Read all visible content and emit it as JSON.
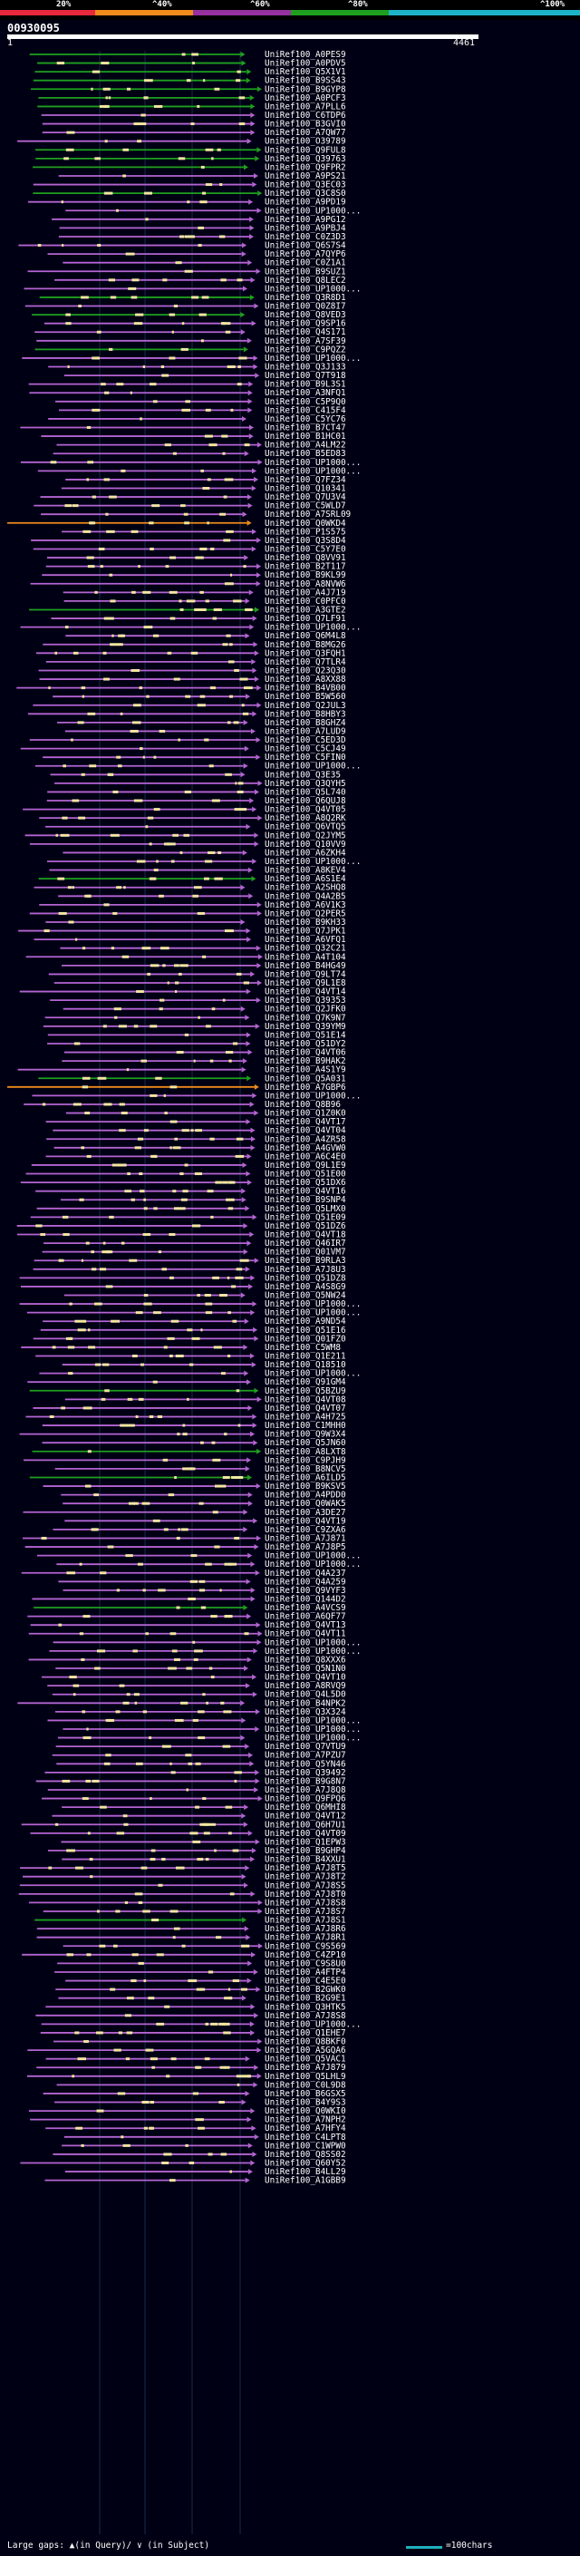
{
  "scale": {
    "labels": [
      "20%",
      "^40%",
      "^60%",
      "^80%",
      "^100%"
    ],
    "colors": [
      "#e8283c",
      "#f08c1c",
      "#9632a0",
      "#1ea01e",
      "#1eb4c8"
    ]
  },
  "query": {
    "id": "00930095",
    "start": "1",
    "end": "4461"
  },
  "legend": {
    "gap_text": "Large gaps: ▲(in Query)/ ∨ (in Subject)",
    "scale_text": "=100chars"
  },
  "colors": {
    "identity_green": "#1ea01e",
    "identity_purple": "#b464d2",
    "identity_orange": "#f08c1c",
    "gap_marks": "#f0e6a0"
  },
  "hits": [
    {
      "label": "UniRef100_A0PES9",
      "color": "green"
    },
    {
      "label": "UniRef100_A0PDV5",
      "color": "green"
    },
    {
      "label": "UniRef100_Q5X1V1",
      "color": "green"
    },
    {
      "label": "UniRef100_B9SS43",
      "color": "green"
    },
    {
      "label": "UniRef100_B9GYP8",
      "color": "green"
    },
    {
      "label": "UniRef100_A0PCF3",
      "color": "green"
    },
    {
      "label": "UniRef100_A7PLL6",
      "color": "green"
    },
    {
      "label": "UniRef100_C6TDP6",
      "color": "purple"
    },
    {
      "label": "UniRef100_B3GVI0",
      "color": "purple"
    },
    {
      "label": "UniRef100_A7QW77",
      "color": "purple"
    },
    {
      "label": "UniRef100_O39789",
      "color": "purple"
    },
    {
      "label": "UniRef100_Q9FUL8",
      "color": "green"
    },
    {
      "label": "UniRef100_Q39763",
      "color": "green"
    },
    {
      "label": "UniRef100_Q9FPR2",
      "color": "green"
    },
    {
      "label": "UniRef100_A9PS21",
      "color": "purple"
    },
    {
      "label": "UniRef100_Q3EC03",
      "color": "purple"
    },
    {
      "label": "UniRef100_Q3C8S0",
      "color": "green"
    },
    {
      "label": "UniRef100_A9PD19",
      "color": "purple"
    },
    {
      "label": "UniRef100_UP1000...",
      "color": "purple"
    },
    {
      "label": "UniRef100_A9PG12",
      "color": "purple"
    },
    {
      "label": "UniRef100_A9PBJ4",
      "color": "purple"
    },
    {
      "label": "UniRef100_C0Z3D3",
      "color": "purple"
    },
    {
      "label": "UniRef100_Q6S7S4",
      "color": "purple"
    },
    {
      "label": "UniRef100_A7QYP6",
      "color": "purple"
    },
    {
      "label": "UniRef100_C0Z1A1",
      "color": "purple"
    },
    {
      "label": "UniRef100_B9SUZ1",
      "color": "purple"
    },
    {
      "label": "UniRef100_Q8LEC2",
      "color": "purple"
    },
    {
      "label": "UniRef100_UP1000...",
      "color": "purple"
    },
    {
      "label": "UniRef100_Q3R8D1",
      "color": "green"
    },
    {
      "label": "UniRef100_Q0Z8I7",
      "color": "purple"
    },
    {
      "label": "UniRef100_Q8VED3",
      "color": "green"
    },
    {
      "label": "UniRef100_Q9SP16",
      "color": "purple"
    },
    {
      "label": "UniRef100_Q4S171",
      "color": "purple"
    },
    {
      "label": "UniRef100_A7SF39",
      "color": "purple"
    },
    {
      "label": "UniRef100_C9PQZ2",
      "color": "green"
    },
    {
      "label": "UniRef100_UP1000...",
      "color": "purple"
    },
    {
      "label": "UniRef100_Q3J133",
      "color": "purple"
    },
    {
      "label": "UniRef100_Q7T918",
      "color": "purple"
    },
    {
      "label": "UniRef100_B9L3S1",
      "color": "purple"
    },
    {
      "label": "UniRef100_A3NFQ1",
      "color": "purple"
    },
    {
      "label": "UniRef100_C5P9Q0",
      "color": "purple"
    },
    {
      "label": "UniRef100_C415F4",
      "color": "purple"
    },
    {
      "label": "UniRef100_C5YC76",
      "color": "purple"
    },
    {
      "label": "UniRef100_B7CT47",
      "color": "purple"
    },
    {
      "label": "UniRef100_B1HC01",
      "color": "purple"
    },
    {
      "label": "UniRef100_A4LM22",
      "color": "purple"
    },
    {
      "label": "UniRef100_B5ED83",
      "color": "purple"
    },
    {
      "label": "UniRef100_UP1000...",
      "color": "purple"
    },
    {
      "label": "UniRef100_UP1000...",
      "color": "purple"
    },
    {
      "label": "UniRef100_Q7FZ34",
      "color": "purple"
    },
    {
      "label": "UniRef100_Q10341",
      "color": "purple"
    },
    {
      "label": "UniRef100_Q7U3V4",
      "color": "purple"
    },
    {
      "label": "UniRef100_C5WLD7",
      "color": "purple"
    },
    {
      "label": "UniRef100_A7SRL09",
      "color": "purple"
    },
    {
      "label": "UniRef100_Q0WKD4",
      "color": "orange"
    },
    {
      "label": "UniRef100_P1S575",
      "color": "purple"
    },
    {
      "label": "UniRef100_Q3S8D4",
      "color": "purple"
    },
    {
      "label": "UniRef100_C5Y7E0",
      "color": "purple"
    },
    {
      "label": "UniRef100_Q8VV91",
      "color": "purple"
    },
    {
      "label": "UniRef100_B2T117",
      "color": "purple"
    },
    {
      "label": "UniRef100_B9KL99",
      "color": "purple"
    },
    {
      "label": "UniRef100_A8NVW6",
      "color": "purple"
    },
    {
      "label": "UniRef100_A4J719",
      "color": "purple"
    },
    {
      "label": "UniRef100_C0PFC0",
      "color": "purple"
    },
    {
      "label": "UniRef100_A3GTE2",
      "color": "green"
    },
    {
      "label": "UniRef100_Q7LF91",
      "color": "purple"
    },
    {
      "label": "UniRef100_UP1000...",
      "color": "purple"
    },
    {
      "label": "UniRef100_Q6M4L8",
      "color": "purple"
    },
    {
      "label": "UniRef100_B8MG26",
      "color": "purple"
    },
    {
      "label": "UniRef100_Q3FQH1",
      "color": "purple"
    },
    {
      "label": "UniRef100_Q7TLR4",
      "color": "purple"
    },
    {
      "label": "UniRef100_Q23Q30",
      "color": "purple"
    },
    {
      "label": "UniRef100_A8XX88",
      "color": "purple"
    },
    {
      "label": "UniRef100_B4VB00",
      "color": "purple"
    },
    {
      "label": "UniRef100_B5W560",
      "color": "purple"
    },
    {
      "label": "UniRef100_Q2JUL3",
      "color": "purple"
    },
    {
      "label": "UniRef100_B8HBY3",
      "color": "purple"
    },
    {
      "label": "UniRef100_B8GHZ4",
      "color": "purple"
    },
    {
      "label": "UniRef100_A7LUD9",
      "color": "purple"
    },
    {
      "label": "UniRef100_C5ED3D",
      "color": "purple"
    },
    {
      "label": "UniRef100_C5CJ49",
      "color": "purple"
    },
    {
      "label": "UniRef100_C5FIN0",
      "color": "purple"
    },
    {
      "label": "UniRef100_UP1000...",
      "color": "purple"
    },
    {
      "label": "UniRef100_Q3E35",
      "color": "purple"
    },
    {
      "label": "UniRef100_Q3QYH5",
      "color": "purple"
    },
    {
      "label": "UniRef100_Q5L740",
      "color": "purple"
    },
    {
      "label": "UniRef100_Q6QUJ8",
      "color": "purple"
    },
    {
      "label": "UniRef100_Q4VT05",
      "color": "purple"
    },
    {
      "label": "UniRef100_A8Q2RK",
      "color": "purple"
    },
    {
      "label": "UniRef100_Q6VTQ5",
      "color": "purple"
    },
    {
      "label": "UniRef100_Q2JYM5",
      "color": "purple"
    },
    {
      "label": "UniRef100_Q10VV9",
      "color": "purple"
    },
    {
      "label": "UniRef100_A6ZKH4",
      "color": "purple"
    },
    {
      "label": "UniRef100_UP1000...",
      "color": "purple"
    },
    {
      "label": "UniRef100_A8KEV4",
      "color": "purple"
    },
    {
      "label": "UniRef100_A6S1E4",
      "color": "green"
    },
    {
      "label": "UniRef100_A2SHQ8",
      "color": "purple"
    },
    {
      "label": "UniRef100_Q4A2B5",
      "color": "purple"
    },
    {
      "label": "UniRef100_A6V1K3",
      "color": "purple"
    },
    {
      "label": "UniRef100_Q2PER5",
      "color": "purple"
    },
    {
      "label": "UniRef100_B9KH33",
      "color": "purple"
    },
    {
      "label": "UniRef100_Q7JPK1",
      "color": "purple"
    },
    {
      "label": "UniRef100_A6VFQ1",
      "color": "purple"
    },
    {
      "label": "UniRef100_Q32C21",
      "color": "purple"
    },
    {
      "label": "UniRef100_A4T104",
      "color": "purple"
    },
    {
      "label": "UniRef100_B4HG49",
      "color": "purple"
    },
    {
      "label": "UniRef100_Q9LT74",
      "color": "purple"
    },
    {
      "label": "UniRef100_Q9L1E8",
      "color": "purple"
    },
    {
      "label": "UniRef100_Q4VT14",
      "color": "purple"
    },
    {
      "label": "UniRef100_Q39353",
      "color": "purple"
    },
    {
      "label": "UniRef100_Q2JFK0",
      "color": "purple"
    },
    {
      "label": "UniRef100_Q7K9N7",
      "color": "purple"
    },
    {
      "label": "UniRef100_Q39YM9",
      "color": "purple"
    },
    {
      "label": "UniRef100_Q51E14",
      "color": "purple"
    },
    {
      "label": "UniRef100_Q51DY2",
      "color": "purple"
    },
    {
      "label": "UniRef100_Q4VT06",
      "color": "purple"
    },
    {
      "label": "UniRef100_B9HAK2",
      "color": "purple"
    },
    {
      "label": "UniRef100_A4S1Y9",
      "color": "purple"
    },
    {
      "label": "UniRef100_Q5A031",
      "color": "green"
    },
    {
      "label": "UniRef100_A7GBP6",
      "color": "orange"
    },
    {
      "label": "UniRef100_UP1000...",
      "color": "purple"
    },
    {
      "label": "UniRef100_Q8B96",
      "color": "purple"
    },
    {
      "label": "UniRef100_Q1Z0K0",
      "color": "purple"
    },
    {
      "label": "UniRef100_Q4VT17",
      "color": "purple"
    },
    {
      "label": "UniRef100_Q4VT04",
      "color": "purple"
    },
    {
      "label": "UniRef100_A4ZR58",
      "color": "purple"
    },
    {
      "label": "UniRef100_A4GVW0",
      "color": "purple"
    },
    {
      "label": "UniRef100_A6C4E0",
      "color": "purple"
    },
    {
      "label": "UniRef100_Q9L1E9",
      "color": "purple"
    },
    {
      "label": "UniRef100_Q51E00",
      "color": "purple"
    },
    {
      "label": "UniRef100_Q51DX6",
      "color": "purple"
    },
    {
      "label": "UniRef100_Q4VT16",
      "color": "purple"
    },
    {
      "label": "UniRef100_B9SNP4",
      "color": "purple"
    },
    {
      "label": "UniRef100_Q5LMX0",
      "color": "purple"
    },
    {
      "label": "UniRef100_Q51E09",
      "color": "purple"
    },
    {
      "label": "UniRef100_Q51DZ6",
      "color": "purple"
    },
    {
      "label": "UniRef100_Q4VT18",
      "color": "purple"
    },
    {
      "label": "UniRef100_Q46IR7",
      "color": "purple"
    },
    {
      "label": "UniRef100_Q01VM7",
      "color": "purple"
    },
    {
      "label": "UniRef100_B9RLA3",
      "color": "purple"
    },
    {
      "label": "UniRef100_A7J8U3",
      "color": "purple"
    },
    {
      "label": "UniRef100_Q51DZ8",
      "color": "purple"
    },
    {
      "label": "UniRef100_A4S8G9",
      "color": "purple"
    },
    {
      "label": "UniRef100_Q5NW24",
      "color": "purple"
    },
    {
      "label": "UniRef100_UP1000...",
      "color": "purple"
    },
    {
      "label": "UniRef100_UP1000...",
      "color": "purple"
    },
    {
      "label": "UniRef100_A9ND54",
      "color": "purple"
    },
    {
      "label": "UniRef100_Q51E16",
      "color": "purple"
    },
    {
      "label": "UniRef100_Q01FZ0",
      "color": "purple"
    },
    {
      "label": "UniRef100_C5WM8",
      "color": "purple"
    },
    {
      "label": "UniRef100_Q1E211",
      "color": "purple"
    },
    {
      "label": "UniRef100_Q18510",
      "color": "purple"
    },
    {
      "label": "UniRef100_UP1000...",
      "color": "purple"
    },
    {
      "label": "UniRef100_Q91GM4",
      "color": "purple"
    },
    {
      "label": "UniRef100_Q5BZU9",
      "color": "green"
    },
    {
      "label": "UniRef100_Q4VT08",
      "color": "purple"
    },
    {
      "label": "UniRef100_Q4VT07",
      "color": "purple"
    },
    {
      "label": "UniRef100_A4H725",
      "color": "purple"
    },
    {
      "label": "UniRef100_C1MHH0",
      "color": "purple"
    },
    {
      "label": "UniRef100_Q9W3X4",
      "color": "purple"
    },
    {
      "label": "UniRef100_Q5JN60",
      "color": "purple"
    },
    {
      "label": "UniRef100_A8LXT8",
      "color": "green"
    },
    {
      "label": "UniRef100_C9PJH9",
      "color": "purple"
    },
    {
      "label": "UniRef100_B8NCV5",
      "color": "purple"
    },
    {
      "label": "UniRef100_A6ILD5",
      "color": "green"
    },
    {
      "label": "UniRef100_B9KSV5",
      "color": "purple"
    },
    {
      "label": "UniRef100_A4PDD0",
      "color": "purple"
    },
    {
      "label": "UniRef100_Q0WAK5",
      "color": "purple"
    },
    {
      "label": "UniRef100_A3DE27",
      "color": "purple"
    },
    {
      "label": "UniRef100_Q4VT19",
      "color": "purple"
    },
    {
      "label": "UniRef100_C9ZXA6",
      "color": "purple"
    },
    {
      "label": "UniRef100_A7J871",
      "color": "purple"
    },
    {
      "label": "UniRef100_A7J8P5",
      "color": "purple"
    },
    {
      "label": "UniRef100_UP1000...",
      "color": "purple"
    },
    {
      "label": "UniRef100_UP1000...",
      "color": "purple"
    },
    {
      "label": "UniRef100_Q4A237",
      "color": "purple"
    },
    {
      "label": "UniRef100_Q4A259",
      "color": "purple"
    },
    {
      "label": "UniRef100_Q9VYF3",
      "color": "purple"
    },
    {
      "label": "UniRef100_Q144D2",
      "color": "purple"
    },
    {
      "label": "UniRef100_A4VCS9",
      "color": "green"
    },
    {
      "label": "UniRef100_A6QF77",
      "color": "purple"
    },
    {
      "label": "UniRef100_Q4VT13",
      "color": "purple"
    },
    {
      "label": "UniRef100_Q4VT11",
      "color": "purple"
    },
    {
      "label": "UniRef100_UP1000...",
      "color": "purple"
    },
    {
      "label": "UniRef100_UP1000...",
      "color": "purple"
    },
    {
      "label": "UniRef100_Q8XXX6",
      "color": "purple"
    },
    {
      "label": "UniRef100_Q5N1N0",
      "color": "purple"
    },
    {
      "label": "UniRef100_Q4VT10",
      "color": "purple"
    },
    {
      "label": "UniRef100_A8RVQ9",
      "color": "purple"
    },
    {
      "label": "UniRef100_Q4L5D0",
      "color": "purple"
    },
    {
      "label": "UniRef100_B4NPK2",
      "color": "purple"
    },
    {
      "label": "UniRef100_Q3X324",
      "color": "purple"
    },
    {
      "label": "UniRef100_UP1000...",
      "color": "purple"
    },
    {
      "label": "UniRef100_UP1000...",
      "color": "purple"
    },
    {
      "label": "UniRef100_UP1000...",
      "color": "purple"
    },
    {
      "label": "UniRef100_Q7VTU9",
      "color": "purple"
    },
    {
      "label": "UniRef100_A7PZU7",
      "color": "purple"
    },
    {
      "label": "UniRef100_Q5YN46",
      "color": "purple"
    },
    {
      "label": "UniRef100_Q39492",
      "color": "purple"
    },
    {
      "label": "UniRef100_B9G8N7",
      "color": "purple"
    },
    {
      "label": "UniRef100_A7J8Q8",
      "color": "purple"
    },
    {
      "label": "UniRef100_Q9FPQ6",
      "color": "purple"
    },
    {
      "label": "UniRef100_Q6MHI8",
      "color": "purple"
    },
    {
      "label": "UniRef100_Q4VT12",
      "color": "purple"
    },
    {
      "label": "UniRef100_Q6H7U1",
      "color": "purple"
    },
    {
      "label": "UniRef100_Q4VT09",
      "color": "purple"
    },
    {
      "label": "UniRef100_Q1EPW3",
      "color": "purple"
    },
    {
      "label": "UniRef100_B9GHP4",
      "color": "purple"
    },
    {
      "label": "UniRef100_B4XXU1",
      "color": "purple"
    },
    {
      "label": "UniRef100_A7J8T5",
      "color": "purple"
    },
    {
      "label": "UniRef100_A7J8T2",
      "color": "purple"
    },
    {
      "label": "UniRef100_A7J8S5",
      "color": "purple"
    },
    {
      "label": "UniRef100_A7J8T0",
      "color": "purple"
    },
    {
      "label": "UniRef100_A7J8S8",
      "color": "purple"
    },
    {
      "label": "UniRef100_A7J8S7",
      "color": "purple"
    },
    {
      "label": "UniRef100_A7J8S1",
      "color": "green"
    },
    {
      "label": "UniRef100_A7J8R6",
      "color": "purple"
    },
    {
      "label": "UniRef100_A7J8R1",
      "color": "purple"
    },
    {
      "label": "UniRef100_C9S569",
      "color": "purple"
    },
    {
      "label": "UniRef100_C4ZP10",
      "color": "purple"
    },
    {
      "label": "UniRef100_C9S8U0",
      "color": "purple"
    },
    {
      "label": "UniRef100_A4FTP4",
      "color": "purple"
    },
    {
      "label": "UniRef100_C4E5E0",
      "color": "purple"
    },
    {
      "label": "UniRef100_B2GWK0",
      "color": "purple"
    },
    {
      "label": "UniRef100_B2G9E1",
      "color": "purple"
    },
    {
      "label": "UniRef100_Q3HTK5",
      "color": "purple"
    },
    {
      "label": "UniRef100_A7J8S8",
      "color": "purple"
    },
    {
      "label": "UniRef100_UP1000...",
      "color": "purple"
    },
    {
      "label": "UniRef100_Q1EHE7",
      "color": "purple"
    },
    {
      "label": "UniRef100_Q8BKF0",
      "color": "purple"
    },
    {
      "label": "UniRef100_A5GQA6",
      "color": "purple"
    },
    {
      "label": "UniRef100_Q5VAC1",
      "color": "purple"
    },
    {
      "label": "UniRef100_A7J879",
      "color": "purple"
    },
    {
      "label": "UniRef100_Q5LHL9",
      "color": "purple"
    },
    {
      "label": "UniRef100_C0L9D8",
      "color": "purple"
    },
    {
      "label": "UniRef100_B6GSX5",
      "color": "purple"
    },
    {
      "label": "UniRef100_B4Y9S3",
      "color": "purple"
    },
    {
      "label": "UniRef100_Q0WKI0",
      "color": "purple"
    },
    {
      "label": "UniRef100_A7NPH2",
      "color": "purple"
    },
    {
      "label": "UniRef100_A7HFY4",
      "color": "purple"
    },
    {
      "label": "UniRef100_C4LPT8",
      "color": "purple"
    },
    {
      "label": "UniRef100_C1WPW0",
      "color": "purple"
    },
    {
      "label": "UniRef100_Q8SS02",
      "color": "purple"
    },
    {
      "label": "UniRef100_Q60Y52",
      "color": "purple"
    },
    {
      "label": "UniRef100_B4LL29",
      "color": "purple"
    },
    {
      "label": "UniRef100_A1GBB9",
      "color": "purple"
    }
  ]
}
